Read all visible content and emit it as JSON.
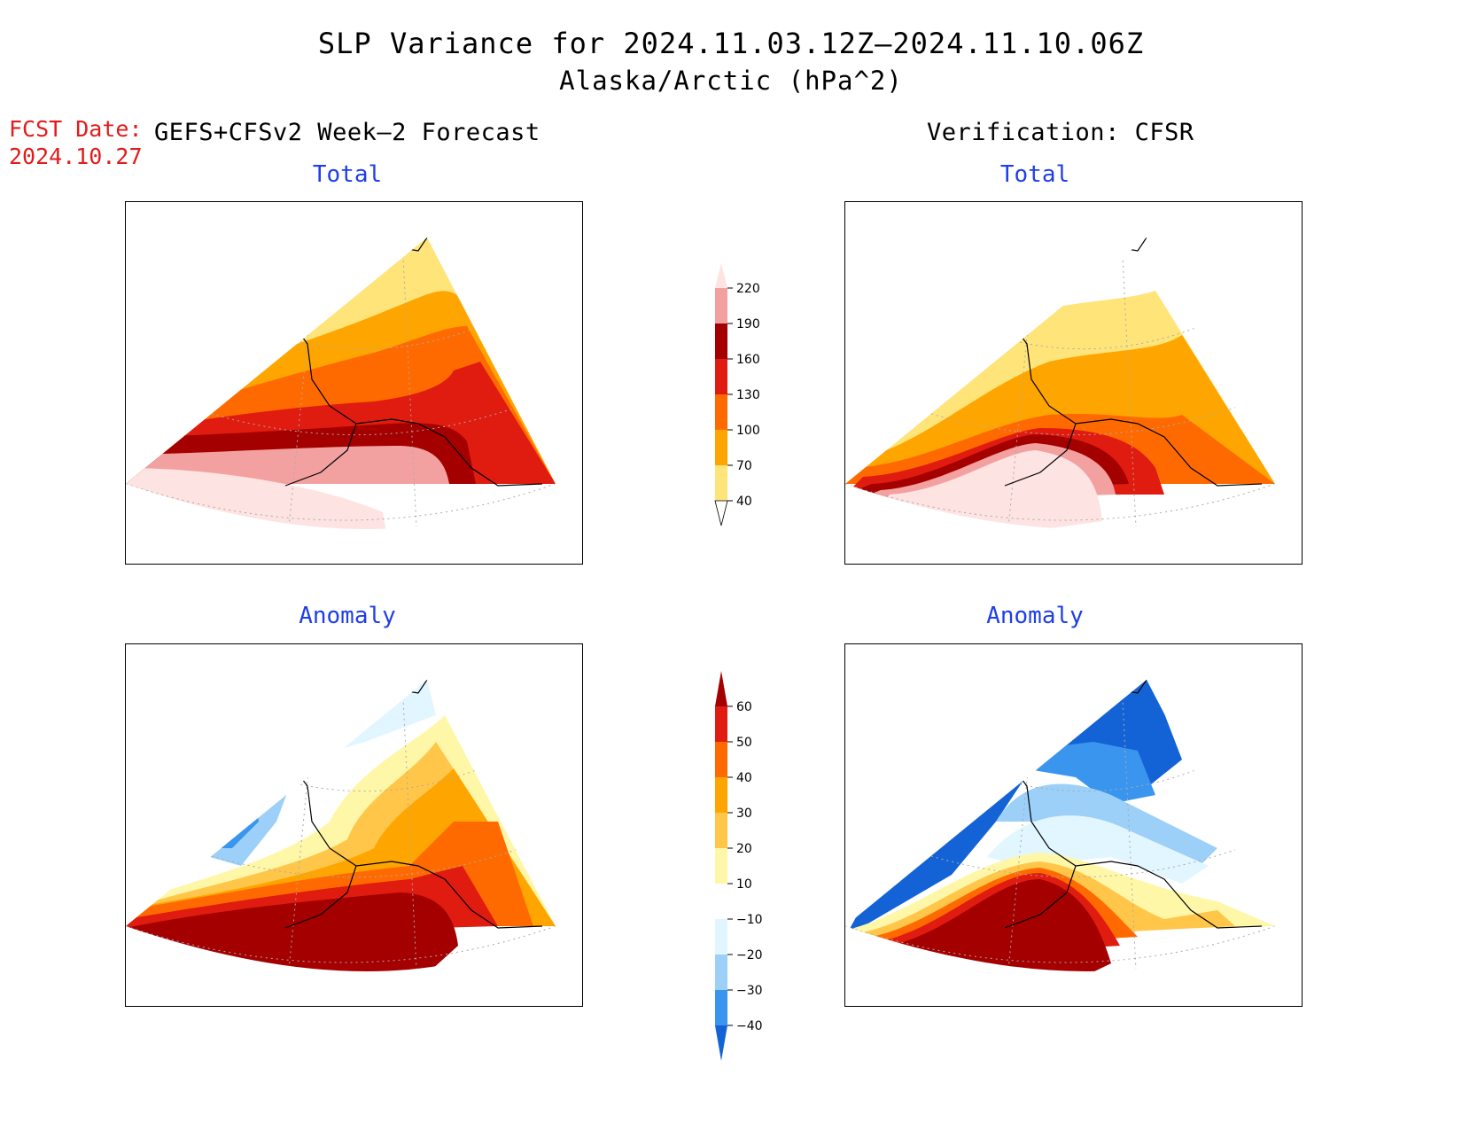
{
  "title": "SLP Variance for 2024.11.03.12Z–2024.11.10.06Z",
  "subtitle": "Alaska/Arctic (hPa^2)",
  "fcst_date": {
    "label": "FCST Date:",
    "value": "2024.10.27"
  },
  "left_header": "GEFS+CFSv2 Week–2 Forecast",
  "right_header": "Verification: CFSR",
  "panels": {
    "forecast_total_title": "Total",
    "verification_total_title": "Total",
    "forecast_anomaly_title": "Anomaly",
    "verification_anomaly_title": "Anomaly"
  },
  "total_colorbar": {
    "labels": [
      "220",
      "190",
      "160",
      "130",
      "100",
      "70",
      "40"
    ],
    "colors": [
      "#fde3e1",
      "#f2a1a0",
      "#a40000",
      "#e01b10",
      "#ff6a00",
      "#ffa500",
      "#ffe47a"
    ]
  },
  "anomaly_colorbar": {
    "labels": [
      "60",
      "50",
      "40",
      "30",
      "20",
      "10",
      "−10",
      "−20",
      "−30",
      "−40"
    ],
    "colors": [
      "#a40000",
      "#e01b10",
      "#ff6a00",
      "#ffa500",
      "#ffc64a",
      "#fff7a8",
      "#ffffff",
      "#e2f6ff",
      "#9cd0f8",
      "#3a95ef",
      "#1463d6"
    ]
  }
}
